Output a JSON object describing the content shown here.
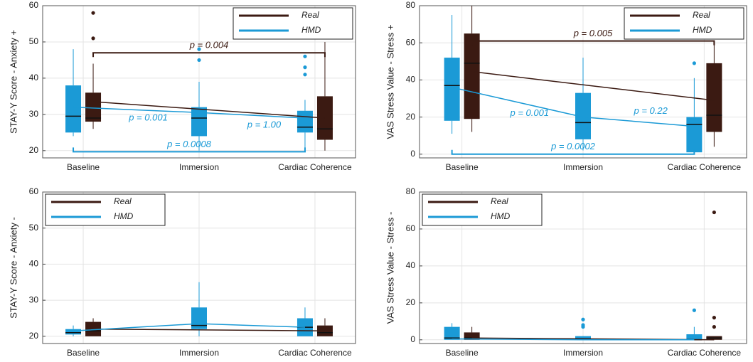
{
  "chart_data": [
    {
      "type": "box",
      "ylabel": "STAY-Y Score - Anxiety +",
      "categories": [
        "Baseline",
        "Immersion",
        "Cardiac Coherence"
      ],
      "ylim": [
        18,
        60
      ],
      "yticks": [
        20,
        30,
        40,
        50,
        60
      ],
      "grid": true,
      "legend": "upper right",
      "series": [
        {
          "name": "Real",
          "color": "#3b1a12",
          "boxes": [
            {
              "whislo": 26,
              "q1": 28,
              "med": 29,
              "q3": 36,
              "whishi": 44,
              "fliers": [
                51,
                58
              ]
            },
            null,
            {
              "whislo": 20,
              "q1": 23,
              "med": 26,
              "q3": 35,
              "whishi": 50,
              "fliers": []
            }
          ],
          "means": [
            33.5,
            null,
            29
          ]
        },
        {
          "name": "HMD",
          "color": "#1b9ad6",
          "boxes": [
            {
              "whislo": 24,
              "q1": 25,
              "med": 29.5,
              "q3": 38,
              "whishi": 48,
              "fliers": []
            },
            {
              "whislo": 20,
              "q1": 24,
              "med": 29,
              "q3": 32,
              "whishi": 39,
              "fliers": [
                45,
                48
              ]
            },
            {
              "whislo": 20,
              "q1": 25,
              "med": 26.5,
              "q3": 31,
              "whishi": 34,
              "fliers": [
                41,
                43,
                46
              ]
            }
          ],
          "means": [
            32,
            30.5,
            29
          ]
        }
      ],
      "annotations": [
        {
          "text": "p = 0.004",
          "between": [
            0,
            2
          ],
          "y": 47,
          "series": 0,
          "bracket": true
        },
        {
          "text": "p = 0.001",
          "between": [
            0,
            1
          ],
          "y": 29,
          "series": 1,
          "bracket": false
        },
        {
          "text": "p = 1.00",
          "between": [
            1,
            2
          ],
          "y": 27,
          "series": 1,
          "bracket": false
        },
        {
          "text": "p = 0.0008",
          "between": [
            0,
            2
          ],
          "y": 19.7,
          "series": 1,
          "bracket": true
        }
      ]
    },
    {
      "type": "box",
      "ylabel": "VAS Stress Value - Stress +",
      "categories": [
        "Baseline",
        "Immersion",
        "Cardiac Coherence"
      ],
      "ylim": [
        -2,
        80
      ],
      "yticks": [
        0,
        20,
        40,
        60,
        80
      ],
      "grid": true,
      "legend": "upper right",
      "series": [
        {
          "name": "Real",
          "color": "#3b1a12",
          "boxes": [
            {
              "whislo": 12,
              "q1": 19,
              "med": 49,
              "q3": 65,
              "whishi": 80,
              "fliers": []
            },
            null,
            {
              "whislo": 4,
              "q1": 12,
              "med": 21,
              "q3": 49,
              "whishi": 60,
              "fliers": []
            }
          ],
          "means": [
            44.5,
            null,
            29
          ]
        },
        {
          "name": "HMD",
          "color": "#1b9ad6",
          "boxes": [
            {
              "whislo": 11,
              "q1": 18,
              "med": 37,
              "q3": 52,
              "whishi": 75,
              "fliers": []
            },
            {
              "whislo": 2,
              "q1": 8,
              "med": 17,
              "q3": 33,
              "whishi": 52,
              "fliers": []
            },
            {
              "whislo": 0,
              "q1": 1,
              "med": 16,
              "q3": 20,
              "whishi": 41,
              "fliers": [
                49
              ]
            }
          ],
          "means": [
            36,
            20,
            15
          ]
        }
      ],
      "annotations": [
        {
          "text": "p = 0.005",
          "between": [
            0,
            2
          ],
          "y": 61,
          "series": 0,
          "bracket": true
        },
        {
          "text": "p = 0.001",
          "between": [
            0,
            1
          ],
          "y": 22,
          "series": 1,
          "bracket": false
        },
        {
          "text": "p = 0.22",
          "between": [
            1,
            2
          ],
          "y": 23,
          "series": 1,
          "bracket": false
        },
        {
          "text": "p = 0.0002",
          "between": [
            0,
            2
          ],
          "y": 0,
          "series": 1,
          "bracket": true
        }
      ]
    },
    {
      "type": "box",
      "ylabel": "STAY-Y Score - Anxiety -",
      "categories": [
        "Baseline",
        "Immersion",
        "Cardiac Coherence"
      ],
      "ylim": [
        18,
        60
      ],
      "yticks": [
        20,
        30,
        40,
        50,
        60
      ],
      "grid": true,
      "legend": "upper left",
      "series": [
        {
          "name": "Real",
          "color": "#3b1a12",
          "boxes": [
            {
              "whislo": 20,
              "q1": 20,
              "med": 21.5,
              "q3": 24,
              "whishi": 25,
              "fliers": []
            },
            null,
            {
              "whislo": 20,
              "q1": 20,
              "med": 21,
              "q3": 23,
              "whishi": 25,
              "fliers": []
            }
          ],
          "means": [
            22,
            null,
            21.5
          ]
        },
        {
          "name": "HMD",
          "color": "#1b9ad6",
          "boxes": [
            {
              "whislo": 20,
              "q1": 20.5,
              "med": 21,
              "q3": 22,
              "whishi": 23,
              "fliers": []
            },
            {
              "whislo": 20,
              "q1": 22,
              "med": 23,
              "q3": 28,
              "whishi": 35,
              "fliers": []
            },
            {
              "whislo": 20,
              "q1": 20,
              "med": 22.5,
              "q3": 25,
              "whishi": 28,
              "fliers": []
            }
          ],
          "means": [
            21.5,
            23.5,
            22.5
          ]
        }
      ],
      "annotations": []
    },
    {
      "type": "box",
      "ylabel": "VAS Stress Value - Stress -",
      "categories": [
        "Baseline",
        "Immersion",
        "Cardiac Coherence"
      ],
      "ylim": [
        -2,
        80
      ],
      "yticks": [
        0,
        20,
        40,
        60,
        80
      ],
      "grid": true,
      "legend": "upper left",
      "series": [
        {
          "name": "Real",
          "color": "#3b1a12",
          "boxes": [
            {
              "whislo": 0,
              "q1": 0,
              "med": 1,
              "q3": 4,
              "whishi": 7,
              "fliers": []
            },
            null,
            {
              "whislo": 0,
              "q1": 0,
              "med": 1,
              "q3": 2,
              "whishi": 2,
              "fliers": [
                7,
                12,
                69
              ]
            }
          ],
          "means": [
            1,
            null,
            0
          ]
        },
        {
          "name": "HMD",
          "color": "#1b9ad6",
          "boxes": [
            {
              "whislo": 0,
              "q1": 0,
              "med": 1,
              "q3": 7,
              "whishi": 9,
              "fliers": []
            },
            {
              "whislo": 0,
              "q1": 0,
              "med": 0.5,
              "q3": 2,
              "whishi": 2,
              "fliers": [
                7,
                8,
                11
              ]
            },
            {
              "whislo": 0,
              "q1": 0,
              "med": 0,
              "q3": 3,
              "whishi": 7,
              "fliers": [
                16
              ]
            }
          ],
          "means": [
            0.5,
            0,
            0
          ]
        }
      ],
      "annotations": []
    }
  ]
}
